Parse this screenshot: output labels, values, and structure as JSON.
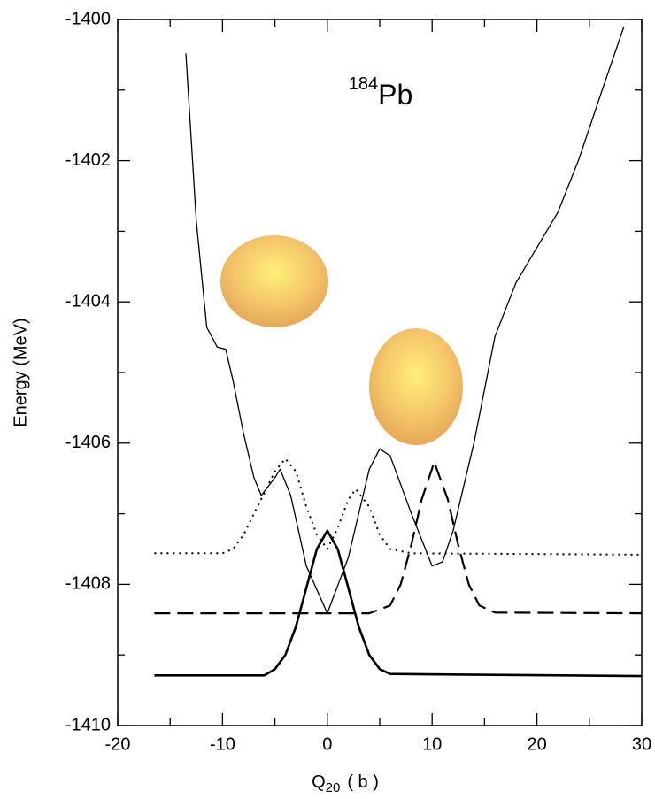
{
  "chart_data": {
    "type": "line",
    "title_superscript": "184",
    "title": "Pb",
    "x_label": "Q",
    "x_label_subscript": "20",
    "x_label_unit": "( b )",
    "y_label": "Energy  (MeV)",
    "xlim": [
      -20,
      30
    ],
    "xticks": [
      -20,
      -10,
      0,
      10,
      20,
      30
    ],
    "xminor_ticks": [
      -15,
      -5,
      5,
      15,
      25
    ],
    "ylim": [
      -1410,
      -1400
    ],
    "yticks": [
      -1410,
      -1408,
      -1406,
      -1404,
      -1402,
      -1400
    ],
    "yminor_ticks": [
      -1409,
      -1407,
      -1405,
      -1403,
      -1401
    ],
    "grid": false,
    "series": [
      {
        "color": "#000000",
        "style": "solid",
        "width": 1.3,
        "x": [
          -13.5,
          -12.5,
          -11.5,
          -10.5,
          -9.7,
          -9,
          -8,
          -7,
          -6.3,
          -5,
          -4.5,
          -3.5,
          -2,
          0,
          2,
          4,
          5,
          6,
          8,
          10,
          11,
          12,
          14,
          16,
          18,
          20,
          22,
          24,
          26,
          28.3
        ],
        "values": [
          -1400.48,
          -1402.86,
          -1404.36,
          -1404.64,
          -1404.67,
          -1405.11,
          -1405.86,
          -1406.49,
          -1406.74,
          -1406.49,
          -1406.37,
          -1406.74,
          -1407.74,
          -1408.41,
          -1407.62,
          -1406.37,
          -1406.08,
          -1406.18,
          -1406.99,
          -1407.74,
          -1407.68,
          -1407.24,
          -1405.99,
          -1404.49,
          -1403.73,
          -1403.23,
          -1402.73,
          -1401.98,
          -1401.1,
          -1400.1
        ]
      },
      {
        "color": "#000000",
        "style": "solid",
        "width": 2.6,
        "x": [
          -16.5,
          -6,
          -5,
          -4,
          -3,
          -2,
          -1,
          0,
          1,
          2,
          3,
          4,
          5,
          6,
          30
        ],
        "values": [
          -1409.29,
          -1409.29,
          -1409.2,
          -1409.0,
          -1408.6,
          -1408.05,
          -1407.5,
          -1407.24,
          -1407.5,
          -1408.05,
          -1408.6,
          -1409.0,
          -1409.2,
          -1409.27,
          -1409.3
        ]
      },
      {
        "color": "#000000",
        "style": "dashed",
        "width": 2.2,
        "x": [
          -16.5,
          4,
          6,
          7,
          8,
          9,
          10.2,
          11.5,
          12.5,
          13.5,
          14.5,
          16,
          30
        ],
        "values": [
          -1408.41,
          -1408.41,
          -1408.3,
          -1408.0,
          -1407.45,
          -1406.8,
          -1406.27,
          -1406.8,
          -1407.45,
          -1408.0,
          -1408.3,
          -1408.4,
          -1408.41
        ]
      },
      {
        "color": "#000000",
        "style": "dotted",
        "width": 2,
        "x": [
          -16.5,
          -10,
          -9,
          -8,
          -7,
          -6,
          -5,
          -4,
          -3,
          -2,
          -1,
          0,
          1,
          2,
          2.7,
          4,
          5,
          6,
          8,
          30
        ],
        "values": [
          -1407.56,
          -1407.56,
          -1407.5,
          -1407.3,
          -1407.0,
          -1406.7,
          -1406.4,
          -1406.22,
          -1406.4,
          -1406.9,
          -1407.3,
          -1407.5,
          -1407.2,
          -1406.8,
          -1406.65,
          -1406.9,
          -1407.3,
          -1407.5,
          -1407.56,
          -1407.58
        ]
      }
    ]
  }
}
